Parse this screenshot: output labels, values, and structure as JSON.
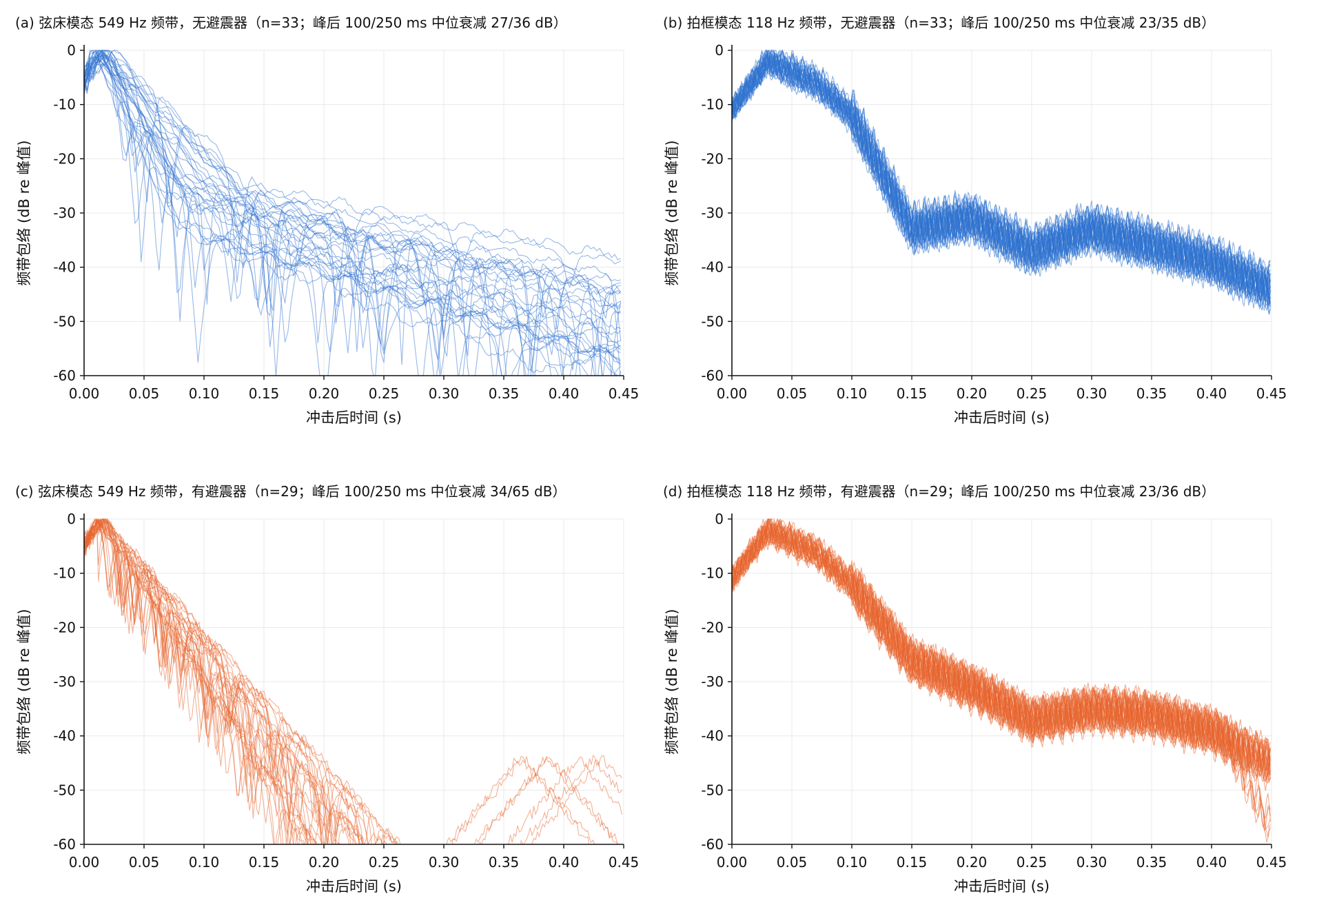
{
  "colors": {
    "blue": "#2f72d0",
    "orange": "#e8652e"
  },
  "chart_data": [
    {
      "type": "line",
      "panel": "a",
      "title": "(a) 弦床模态 549 Hz 频带，无避震器（n=33；峰后 100/250 ms 中位衰减 27/36 dB）",
      "xlabel": "冲击后时间 (s)",
      "ylabel": "频带包络 (dB re 峰值)",
      "xlim": [
        0,
        0.45
      ],
      "ylim": [
        -60,
        0
      ],
      "xticks": [
        0,
        0.05,
        0.1,
        0.15,
        0.2,
        0.25,
        0.3,
        0.35,
        0.4,
        0.45
      ],
      "xtick_labels": [
        "0.00",
        "0.05",
        "0.10",
        "0.15",
        "0.20",
        "0.25",
        "0.30",
        "0.35",
        "0.40",
        "0.45"
      ],
      "yticks": [
        0,
        -10,
        -20,
        -30,
        -40,
        -50,
        -60
      ],
      "ytick_labels": [
        "0",
        "-10",
        "-20",
        "-30",
        "-40",
        "-50",
        "-60"
      ],
      "grid": true,
      "color": "#2f72d0",
      "n_traces": 33,
      "curve_model": "string",
      "median_decay_db": {
        "at_100ms": 27,
        "at_250ms": 36
      },
      "median_trace": {
        "x": [
          0,
          0.01,
          0.02,
          0.05,
          0.1,
          0.15,
          0.2,
          0.25,
          0.3,
          0.35,
          0.4,
          0.45
        ],
        "y": [
          -6,
          0,
          -1,
          -9,
          -27,
          -32,
          -33,
          -36,
          -39,
          -42,
          -45,
          -48
        ]
      }
    },
    {
      "type": "line",
      "panel": "b",
      "title": "(b) 拍框模态 118 Hz 频带，无避震器（n=33；峰后 100/250 ms 中位衰减 23/35 dB）",
      "xlabel": "冲击后时间 (s)",
      "ylabel": "频带包络 (dB re 峰值)",
      "xlim": [
        0,
        0.45
      ],
      "ylim": [
        -60,
        0
      ],
      "xticks": [
        0,
        0.05,
        0.1,
        0.15,
        0.2,
        0.25,
        0.3,
        0.35,
        0.4,
        0.45
      ],
      "xtick_labels": [
        "0.00",
        "0.05",
        "0.10",
        "0.15",
        "0.20",
        "0.25",
        "0.30",
        "0.35",
        "0.40",
        "0.45"
      ],
      "yticks": [
        0,
        -10,
        -20,
        -30,
        -40,
        -50,
        -60
      ],
      "ytick_labels": [
        "0",
        "-10",
        "-20",
        "-30",
        "-40",
        "-50",
        "-60"
      ],
      "grid": true,
      "color": "#2f72d0",
      "n_traces": 33,
      "curve_model": "frame_nodamp",
      "median_decay_db": {
        "at_100ms": 23,
        "at_250ms": 35
      },
      "median_trace": {
        "x": [
          0,
          0.03,
          0.07,
          0.1,
          0.15,
          0.2,
          0.25,
          0.3,
          0.35,
          0.4,
          0.45
        ],
        "y": [
          -11,
          -2,
          -6,
          -12,
          -33,
          -31,
          -37,
          -33,
          -36,
          -39,
          -44
        ]
      }
    },
    {
      "type": "line",
      "panel": "c",
      "title": "(c) 弦床模态 549 Hz 频带，有避震器（n=29；峰后 100/250 ms 中位衰减 34/65 dB）",
      "xlabel": "冲击后时间 (s)",
      "ylabel": "频带包络 (dB re 峰值)",
      "xlim": [
        0,
        0.45
      ],
      "ylim": [
        -60,
        0
      ],
      "xticks": [
        0,
        0.05,
        0.1,
        0.15,
        0.2,
        0.25,
        0.3,
        0.35,
        0.4,
        0.45
      ],
      "xtick_labels": [
        "0.00",
        "0.05",
        "0.10",
        "0.15",
        "0.20",
        "0.25",
        "0.30",
        "0.35",
        "0.40",
        "0.45"
      ],
      "yticks": [
        0,
        -10,
        -20,
        -30,
        -40,
        -50,
        -60
      ],
      "ytick_labels": [
        "0",
        "-10",
        "-20",
        "-30",
        "-40",
        "-50",
        "-60"
      ],
      "grid": true,
      "color": "#e8652e",
      "n_traces": 29,
      "curve_model": "string_damped",
      "median_decay_db": {
        "at_100ms": 34,
        "at_250ms": 65
      },
      "median_trace": {
        "x": [
          0,
          0.01,
          0.05,
          0.1,
          0.15,
          0.2,
          0.25
        ],
        "y": [
          -3,
          0,
          -14,
          -30,
          -45,
          -57,
          -65
        ]
      }
    },
    {
      "type": "line",
      "panel": "d",
      "title": "(d) 拍框模态 118 Hz 频带，有避震器（n=29；峰后 100/250 ms 中位衰减 23/36 dB）",
      "xlabel": "冲击后时间 (s)",
      "ylabel": "频带包络 (dB re 峰值)",
      "xlim": [
        0,
        0.45
      ],
      "ylim": [
        -60,
        0
      ],
      "xticks": [
        0,
        0.05,
        0.1,
        0.15,
        0.2,
        0.25,
        0.3,
        0.35,
        0.4,
        0.45
      ],
      "xtick_labels": [
        "0.00",
        "0.05",
        "0.10",
        "0.15",
        "0.20",
        "0.25",
        "0.30",
        "0.35",
        "0.40",
        "0.45"
      ],
      "yticks": [
        0,
        -10,
        -20,
        -30,
        -40,
        -50,
        -60
      ],
      "ytick_labels": [
        "0",
        "-10",
        "-20",
        "-30",
        "-40",
        "-50",
        "-60"
      ],
      "grid": true,
      "color": "#e8652e",
      "n_traces": 29,
      "curve_model": "frame_damp",
      "median_decay_db": {
        "at_100ms": 23,
        "at_250ms": 36
      },
      "median_trace": {
        "x": [
          0,
          0.03,
          0.07,
          0.1,
          0.15,
          0.2,
          0.25,
          0.3,
          0.35,
          0.4,
          0.45
        ],
        "y": [
          -11,
          -2,
          -6,
          -12,
          -26,
          -31,
          -37,
          -35,
          -36,
          -39,
          -45
        ]
      }
    }
  ]
}
